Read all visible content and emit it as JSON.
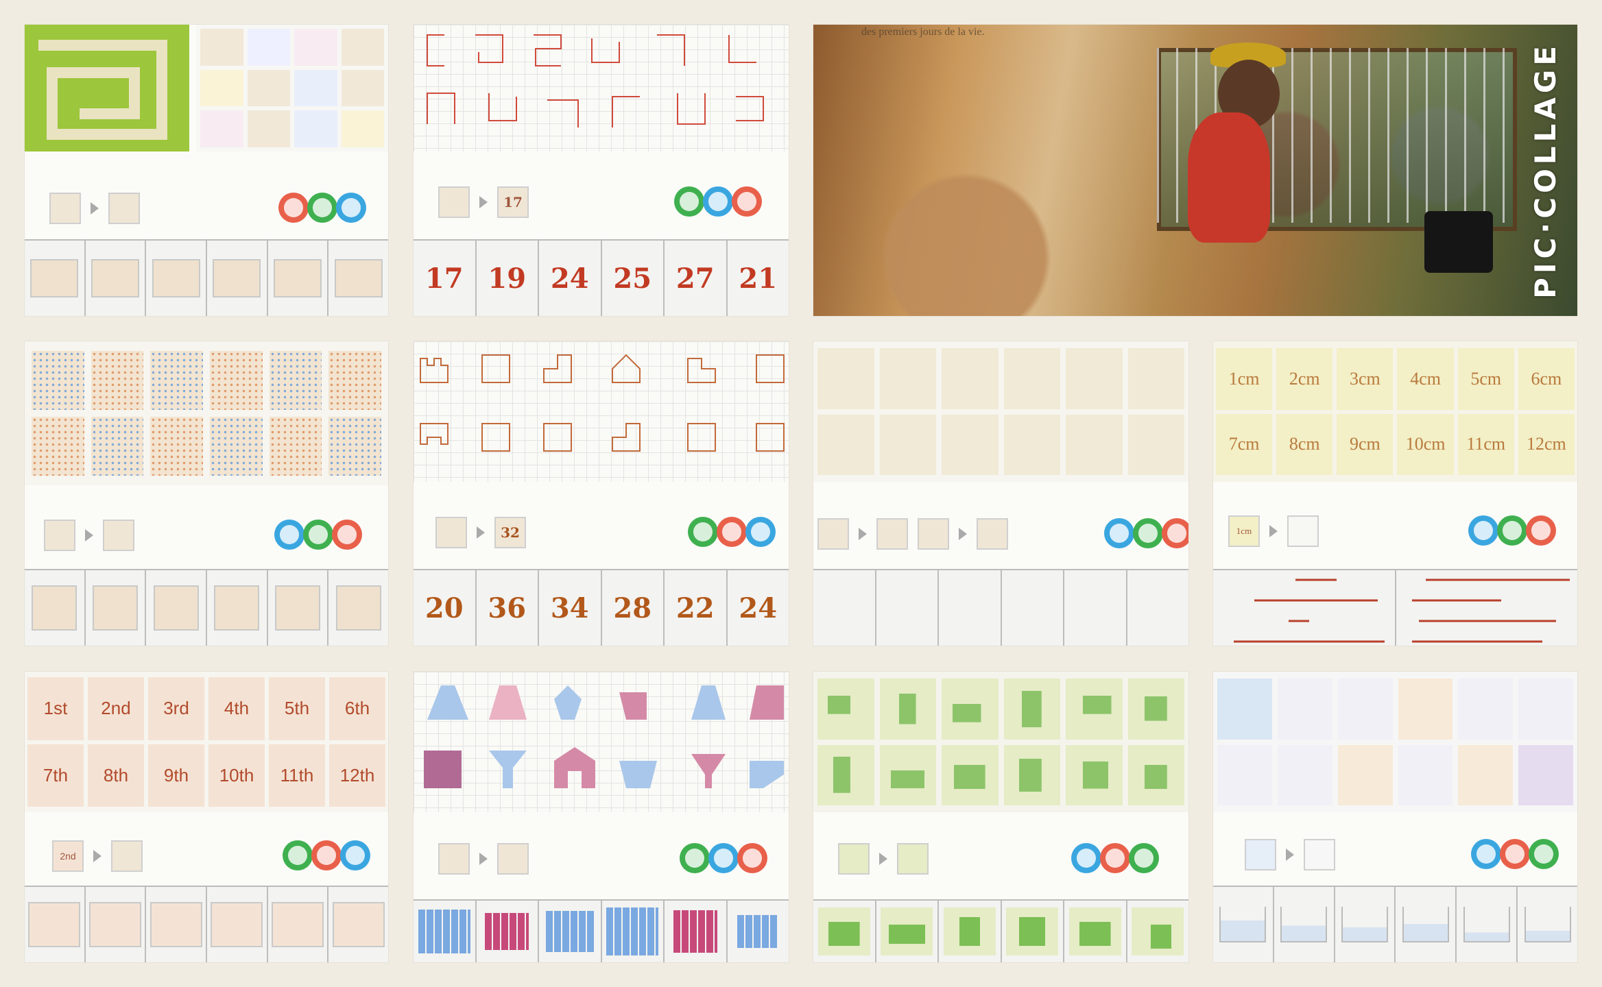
{
  "collage": {
    "watermark": "PIC·COLLAGE",
    "photo_caption": "des premiers jours de la vie."
  },
  "cards": {
    "numbers_a": [
      "17",
      "19",
      "24",
      "25",
      "27",
      "21"
    ],
    "example_number_a": "17",
    "numbers_b": [
      "20",
      "36",
      "34",
      "28",
      "22",
      "24"
    ],
    "example_number_b": "32",
    "lengths_top": [
      "1cm",
      "2cm",
      "3cm",
      "4cm",
      "5cm",
      "6cm"
    ],
    "lengths_bottom": [
      "7cm",
      "8cm",
      "9cm",
      "10cm",
      "11cm",
      "12cm"
    ],
    "example_length": "1cm",
    "ordinals_top": [
      "1st",
      "2nd",
      "3rd",
      "4th",
      "5th",
      "6th"
    ],
    "ordinals_bottom": [
      "7th",
      "8th",
      "9th",
      "10th",
      "11th",
      "12th"
    ],
    "example_ordinal": "2nd"
  },
  "colors": {
    "red": "#e8604a",
    "green": "#3fb04f",
    "blue": "#3aa6e0",
    "card_beige": "#efe1cd",
    "number_red": "#c23a22",
    "number_brown": "#b2581a"
  }
}
